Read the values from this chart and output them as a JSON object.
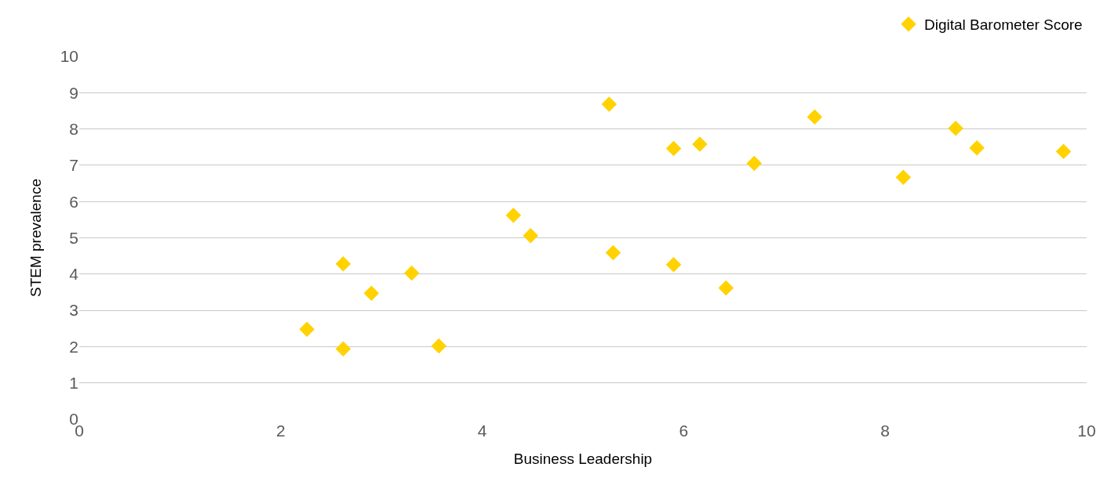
{
  "chart_data": {
    "type": "scatter",
    "xlabel": "Business Leadership",
    "ylabel": "STEM prevalence",
    "x": [
      2.26,
      2.62,
      2.62,
      2.9,
      3.3,
      3.57,
      4.31,
      4.48,
      5.26,
      5.3,
      5.9,
      5.9,
      6.16,
      6.42,
      6.7,
      7.3,
      8.18,
      8.7,
      8.91,
      9.77
    ],
    "series": [
      {
        "name": "Digital Barometer Score",
        "color": "#ffd200",
        "values": [
          2.48,
          1.94,
          4.28,
          3.47,
          4.03,
          2.02,
          5.62,
          5.06,
          8.68,
          4.59,
          4.26,
          7.46,
          7.58,
          3.62,
          7.05,
          8.33,
          6.67,
          8.02,
          7.48,
          7.38
        ]
      }
    ],
    "xlim": [
      0,
      10
    ],
    "xticks": [
      0,
      2,
      4,
      6,
      8,
      10
    ],
    "ylim": [
      0,
      10
    ],
    "yticks": [
      0,
      1,
      2,
      3,
      4,
      5,
      6,
      7,
      8,
      9,
      10
    ],
    "grid": "y",
    "legend": "top right",
    "marker": "diamond"
  }
}
